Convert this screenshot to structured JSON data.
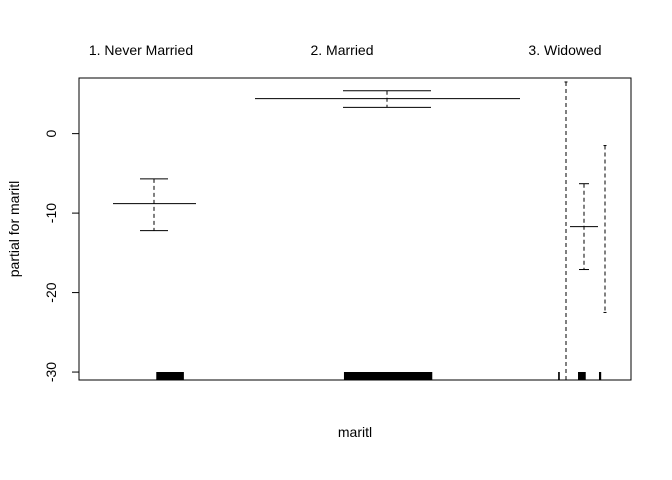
{
  "chart_data": {
    "type": "partial_effect_plot",
    "xlabel": "maritl",
    "ylabel": "partial for maritl",
    "ylim": [
      -31,
      7
    ],
    "yticks": [
      -30,
      -20,
      -10,
      0
    ],
    "ytick_labels": [
      "-30",
      "-20",
      "-10",
      "0"
    ],
    "categories": [
      "1. Never Married",
      "2. Married",
      "3. Widowed"
    ],
    "levels": [
      {
        "label": "1. Never Married",
        "estimate": -8.8,
        "upper": -5.7,
        "lower": -12.2
      },
      {
        "label": "2. Married",
        "estimate": 4.4,
        "upper": 5.4,
        "lower": 3.3
      },
      {
        "label": "3. Widowed",
        "estimate": -11.7,
        "upper": -6.3,
        "lower": -17.1
      }
    ],
    "extra_dashed_bands": [
      {
        "upper": 6.5,
        "lower": -31
      },
      {
        "upper": -1.5,
        "lower": -22.5
      }
    ],
    "rug_marks": [
      {
        "x0": 0.14,
        "x1": 0.19
      },
      {
        "x0": 0.48,
        "x1": 0.64
      },
      {
        "x0": 0.868,
        "x1": 0.871
      },
      {
        "x0": 0.904,
        "x1": 0.918
      },
      {
        "x0": 0.942,
        "x1": 0.946
      }
    ]
  }
}
